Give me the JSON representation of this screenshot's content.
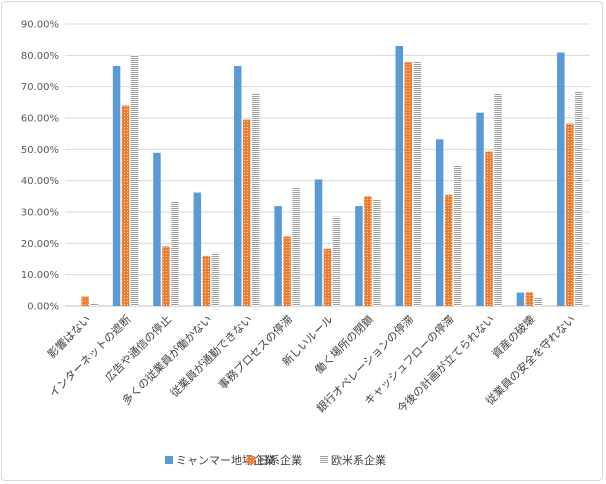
{
  "chart_data": {
    "type": "bar",
    "title": "",
    "xlabel": "",
    "ylabel": "",
    "ylim": [
      0,
      0.9
    ],
    "yticks": [
      0,
      0.1,
      0.2,
      0.3,
      0.4,
      0.5,
      0.6,
      0.7,
      0.8,
      0.9
    ],
    "ytick_labels": [
      "0.00%",
      "10.00%",
      "20.00%",
      "30.00%",
      "40.00%",
      "50.00%",
      "60.00%",
      "70.00%",
      "80.00%",
      "90.00%"
    ],
    "grid": true,
    "legend_position": "bottom",
    "categories": [
      "影響はない",
      "インターネットの遮断",
      "広告や通信の停止",
      "多くの従業員が働かない",
      "従業員が通勤できない",
      "事務プロセスの停滞",
      "新しいルール",
      "働く場所の閉鎖",
      "銀行オペレーションの停滞",
      "キャッシュフローの停滞",
      "今後の計画が立てられない",
      "資産の破壊",
      "従業員の安全を守れない"
    ],
    "series": [
      {
        "name": "ミャンマー地場企業",
        "color": "#5b9bd5",
        "pattern": "solid",
        "values": [
          0.0,
          0.766,
          0.489,
          0.362,
          0.766,
          0.319,
          0.404,
          0.319,
          0.83,
          0.532,
          0.617,
          0.043,
          0.809
        ]
      },
      {
        "name": "日系企業",
        "color": "#ed7d31",
        "pattern": "dots",
        "values": [
          0.03,
          0.64,
          0.19,
          0.16,
          0.595,
          0.222,
          0.183,
          0.35,
          0.778,
          0.355,
          0.493,
          0.044,
          0.582
        ]
      },
      {
        "name": "欧米系企業",
        "color": "#a5a5a5",
        "pattern": "hlines",
        "values": [
          0.008,
          0.8,
          0.333,
          0.17,
          0.678,
          0.38,
          0.285,
          0.34,
          0.78,
          0.448,
          0.678,
          0.025,
          0.683
        ]
      }
    ]
  }
}
